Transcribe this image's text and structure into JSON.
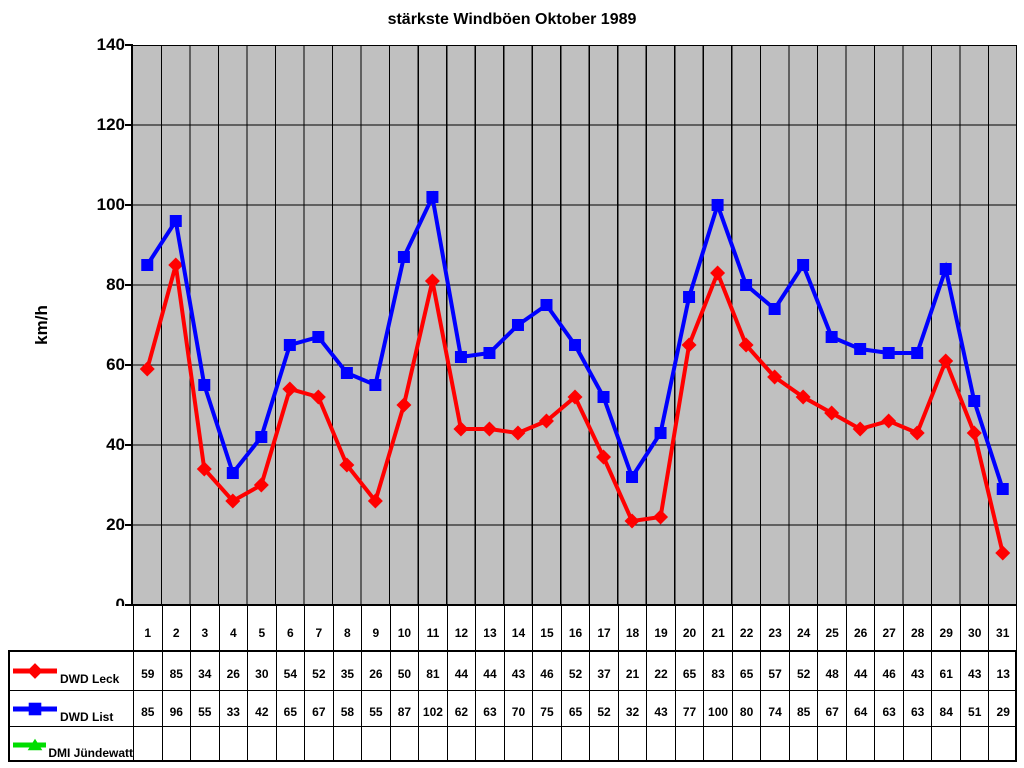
{
  "title": "stärkste Windböen Oktober 1989",
  "ylabel": "km/h",
  "colors": {
    "plot_background": "#c0c0c0",
    "gridline": "#000000",
    "axis": "#000000",
    "series_leck": "#ff0000",
    "series_list": "#0000ff",
    "series_jundewatt": "#00dd00",
    "text": "#000000",
    "table_background": "#ffffff"
  },
  "chart_data": {
    "type": "line",
    "title": "stärkste Windböen Oktober 1989",
    "xlabel": "",
    "ylabel": "km/h",
    "ylim": [
      0,
      140
    ],
    "yticks": [
      0,
      20,
      40,
      60,
      80,
      100,
      120,
      140
    ],
    "grid": true,
    "plot_bg": "#c0c0c0",
    "legend_position": "data-table-left",
    "data_table_shown": true,
    "categories": [
      1,
      2,
      3,
      4,
      5,
      6,
      7,
      8,
      9,
      10,
      11,
      12,
      13,
      14,
      15,
      16,
      17,
      18,
      19,
      20,
      21,
      22,
      23,
      24,
      25,
      26,
      27,
      28,
      29,
      30,
      31
    ],
    "series": [
      {
        "name": "DWD Leck",
        "color": "#ff0000",
        "marker": "diamond",
        "values": [
          59,
          85,
          34,
          26,
          30,
          54,
          52,
          35,
          26,
          50,
          81,
          44,
          44,
          43,
          46,
          52,
          37,
          21,
          22,
          65,
          83,
          65,
          57,
          52,
          48,
          44,
          46,
          43,
          61,
          43,
          13
        ]
      },
      {
        "name": "DWD List",
        "color": "#0000ff",
        "marker": "square",
        "values": [
          85,
          96,
          55,
          33,
          42,
          65,
          67,
          58,
          55,
          87,
          102,
          62,
          63,
          70,
          75,
          65,
          52,
          32,
          43,
          77,
          100,
          80,
          74,
          85,
          67,
          64,
          63,
          63,
          84,
          51,
          29
        ]
      },
      {
        "name": "DMI Jündewatt",
        "color": "#00dd00",
        "marker": "triangle",
        "values": []
      }
    ]
  }
}
